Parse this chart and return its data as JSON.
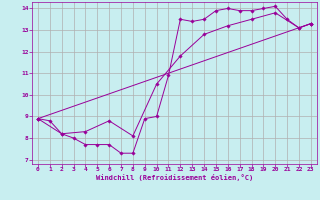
{
  "xlabel": "Windchill (Refroidissement éolien,°C)",
  "xlim": [
    -0.5,
    23.5
  ],
  "ylim": [
    6.8,
    14.3
  ],
  "xticks": [
    0,
    1,
    2,
    3,
    4,
    5,
    6,
    7,
    8,
    9,
    10,
    11,
    12,
    13,
    14,
    15,
    16,
    17,
    18,
    19,
    20,
    21,
    22,
    23
  ],
  "yticks": [
    7,
    8,
    9,
    10,
    11,
    12,
    13,
    14
  ],
  "bg_color": "#c8eef0",
  "grid_color": "#b0b0b0",
  "line_color": "#990099",
  "lines": [
    {
      "x": [
        0,
        1,
        2,
        3,
        4,
        5,
        6,
        7,
        8,
        9,
        10,
        11,
        12,
        13,
        14,
        15,
        16,
        17,
        18,
        19,
        20,
        21,
        22,
        23
      ],
      "y": [
        8.9,
        8.8,
        8.2,
        8.0,
        7.7,
        7.7,
        7.7,
        7.3,
        7.3,
        8.9,
        9.0,
        10.9,
        13.5,
        13.4,
        13.5,
        13.9,
        14.0,
        13.9,
        13.9,
        14.0,
        14.1,
        13.5,
        13.1,
        13.3
      ]
    },
    {
      "x": [
        0,
        23
      ],
      "y": [
        8.9,
        13.3
      ]
    },
    {
      "x": [
        0,
        2,
        4,
        6,
        8,
        10,
        12,
        14,
        16,
        18,
        20,
        22,
        23
      ],
      "y": [
        8.9,
        8.2,
        8.3,
        8.8,
        8.1,
        10.5,
        11.8,
        12.8,
        13.2,
        13.5,
        13.8,
        13.1,
        13.3
      ]
    }
  ]
}
